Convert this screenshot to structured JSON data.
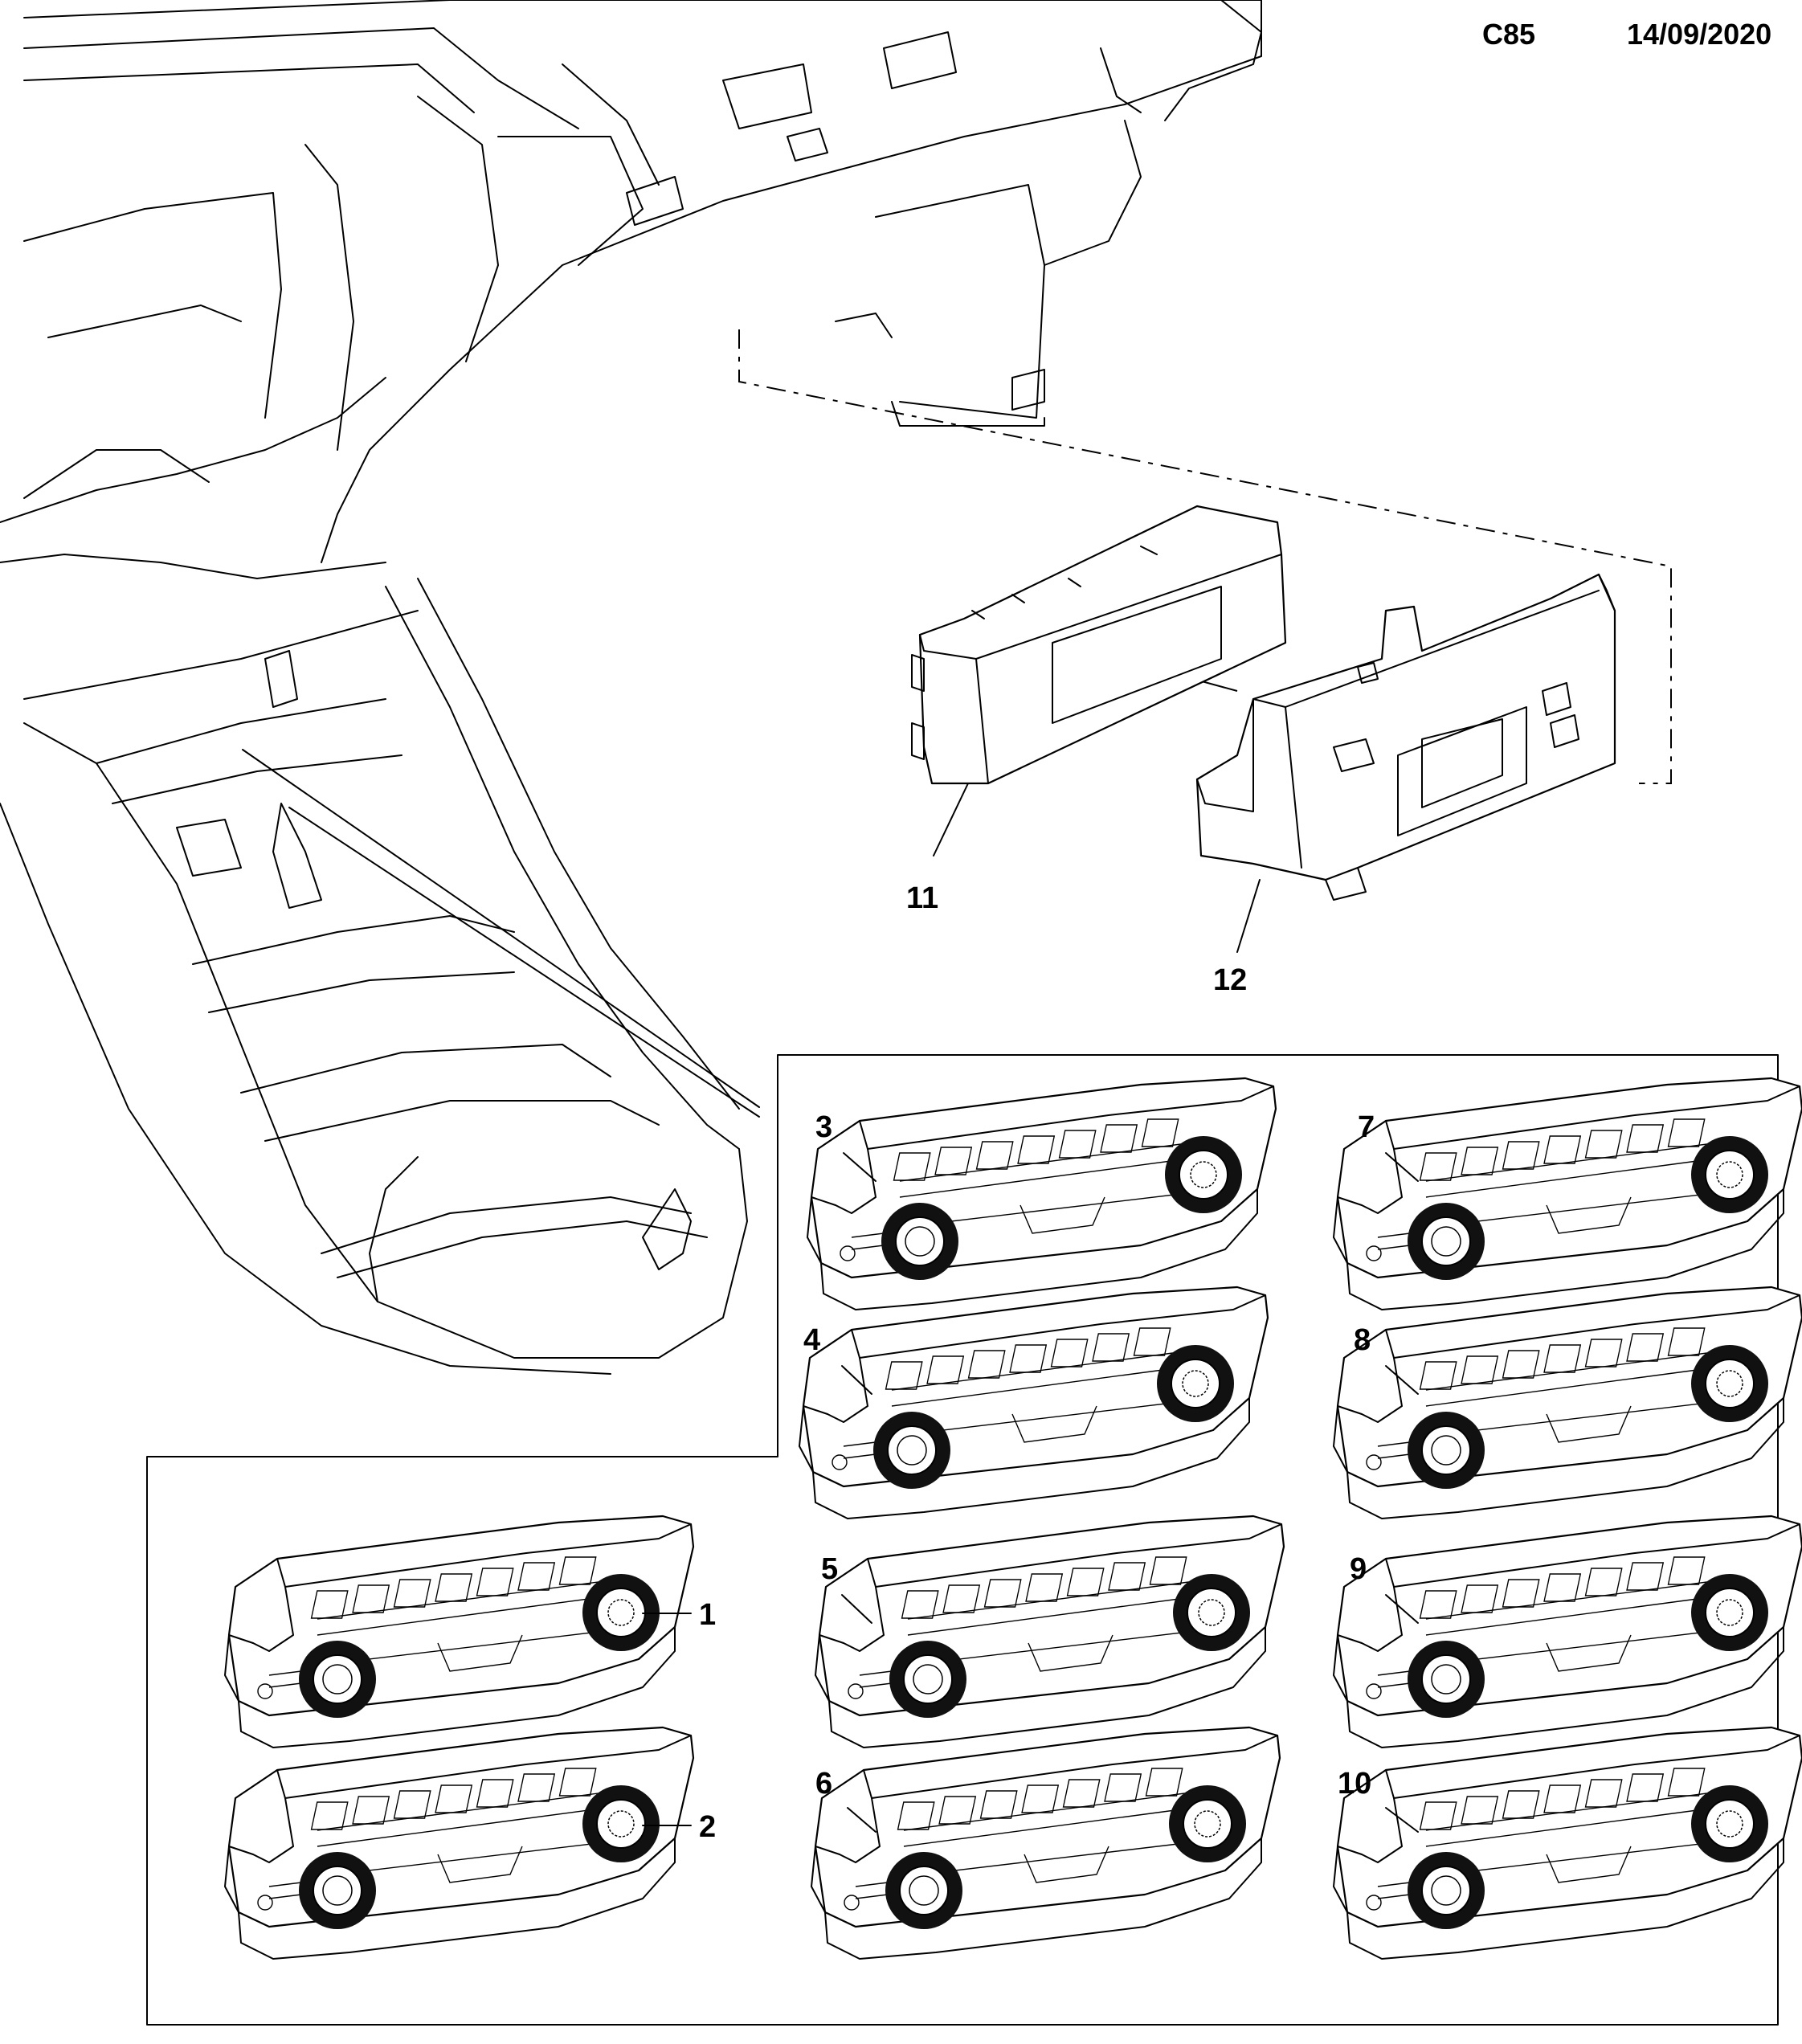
{
  "header": {
    "code": "C85",
    "date": "14/09/2020"
  },
  "parts": {
    "1": "1",
    "2": "2",
    "3": "3",
    "4": "4",
    "5": "5",
    "6": "6",
    "7": "7",
    "8": "8",
    "9": "9",
    "10": "10",
    "11": "11",
    "12": "12"
  }
}
